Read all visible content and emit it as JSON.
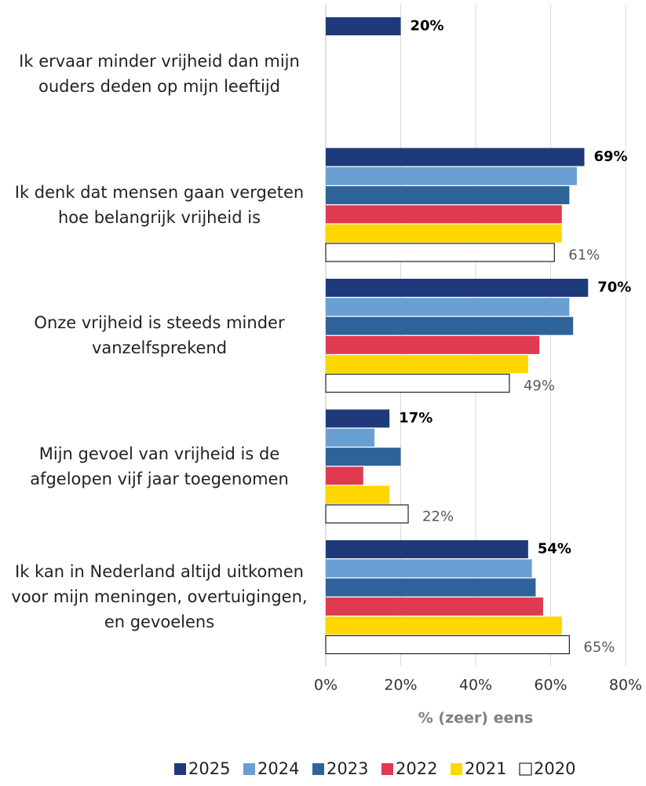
{
  "chart_data": {
    "type": "bar",
    "orientation": "horizontal",
    "x_label": "% (zeer) eens",
    "categories": [
      "Ik ervaar minder vrijheid dan mijn ouders deden op mijn leeftijd",
      "Ik denk dat mensen gaan vergeten hoe belangrijk vrijheid is",
      "Onze vrijheid is steeds minder vanzelfsprekend",
      "Mijn gevoel van vrijheid is de afgelopen vijf jaar toegenomen",
      "Ik kan in Nederland altijd uitkomen voor mijn meningen, overtuigingen, en gevoelens"
    ],
    "series": [
      {
        "name": "2025",
        "color": "#1f3a7a",
        "values": [
          20,
          69,
          70,
          17,
          54
        ],
        "value_labels": [
          "20%",
          "69%",
          "70%",
          "17%",
          "54%"
        ]
      },
      {
        "name": "2024",
        "color": "#6a9fd4",
        "values": [
          null,
          67,
          65,
          13,
          55
        ]
      },
      {
        "name": "2023",
        "color": "#2e6399",
        "values": [
          null,
          65,
          66,
          20,
          56
        ]
      },
      {
        "name": "2022",
        "color": "#e03a52",
        "values": [
          null,
          63,
          57,
          10,
          58
        ]
      },
      {
        "name": "2021",
        "color": "#ffd700",
        "values": [
          null,
          63,
          54,
          17,
          63
        ]
      },
      {
        "name": "2020",
        "color": "#ffffff",
        "values": [
          null,
          61,
          49,
          22,
          65
        ],
        "value_labels": [
          null,
          "61%",
          "49%",
          "22%",
          "65%"
        ]
      }
    ],
    "xlim": [
      0,
      80
    ],
    "xticks": [
      {
        "value": 0,
        "label": "0%"
      },
      {
        "value": 20,
        "label": "20%"
      },
      {
        "value": 40,
        "label": "40%"
      },
      {
        "value": 60,
        "label": "60%"
      },
      {
        "value": 80,
        "label": "80%"
      }
    ],
    "grid": true,
    "legend": "bottom"
  }
}
